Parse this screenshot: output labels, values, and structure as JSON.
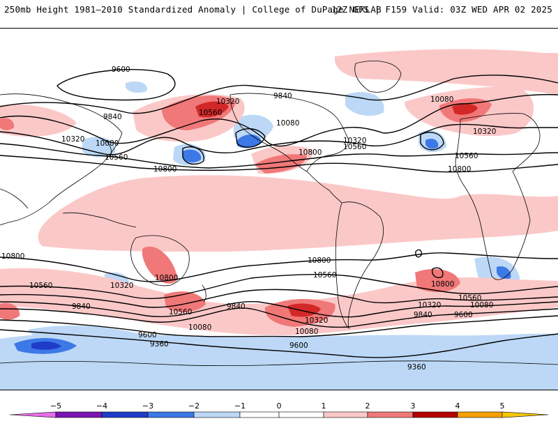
{
  "header": {
    "left": "250mb Height 1981–2010 Standardized Anomaly | College of DuPage NEXLAB",
    "right": "12Z GFS | F159 Valid: 03Z WED APR 02 2025"
  },
  "colors": {
    "neg5": "#e66ee6",
    "neg4": "#7b14b4",
    "neg3": "#1e3cc8",
    "neg2": "#3c78e6",
    "neg1": "#bcd8f6",
    "zero": "#ffffff",
    "pos1": "#fbc8c8",
    "pos2": "#f07878",
    "pos3": "#d22828",
    "pos4": "#b40000",
    "pos5": "#f5a000",
    "contour": "#000000",
    "coast": "#000000"
  },
  "contour_labels": [
    {
      "text": "9600"
    },
    {
      "text": "9840"
    },
    {
      "text": "10320"
    },
    {
      "text": "10080"
    },
    {
      "text": "10560"
    },
    {
      "text": "10800"
    },
    {
      "text": "10320"
    },
    {
      "text": "10560"
    },
    {
      "text": "10080"
    },
    {
      "text": "10800"
    },
    {
      "text": "10320"
    },
    {
      "text": "10560"
    },
    {
      "text": "9840"
    },
    {
      "text": "10080"
    },
    {
      "text": "10320"
    },
    {
      "text": "10560"
    },
    {
      "text": "10800"
    },
    {
      "text": "10800"
    },
    {
      "text": "10560"
    },
    {
      "text": "10320"
    },
    {
      "text": "10800"
    },
    {
      "text": "10560"
    },
    {
      "text": "10080"
    },
    {
      "text": "9840"
    },
    {
      "text": "9600"
    },
    {
      "text": "9360"
    },
    {
      "text": "9840"
    },
    {
      "text": "10320"
    },
    {
      "text": "10080"
    },
    {
      "text": "10800"
    },
    {
      "text": "10560"
    },
    {
      "text": "9600"
    },
    {
      "text": "10800"
    },
    {
      "text": "10560"
    },
    {
      "text": "10320"
    },
    {
      "text": "10080"
    },
    {
      "text": "9840"
    },
    {
      "text": "9600"
    },
    {
      "text": "9360"
    }
  ],
  "colorbar": {
    "ticks": [
      "−5",
      "−4",
      "−3",
      "−2",
      "−1",
      "0",
      "1",
      "2",
      "3",
      "4",
      "5"
    ]
  }
}
